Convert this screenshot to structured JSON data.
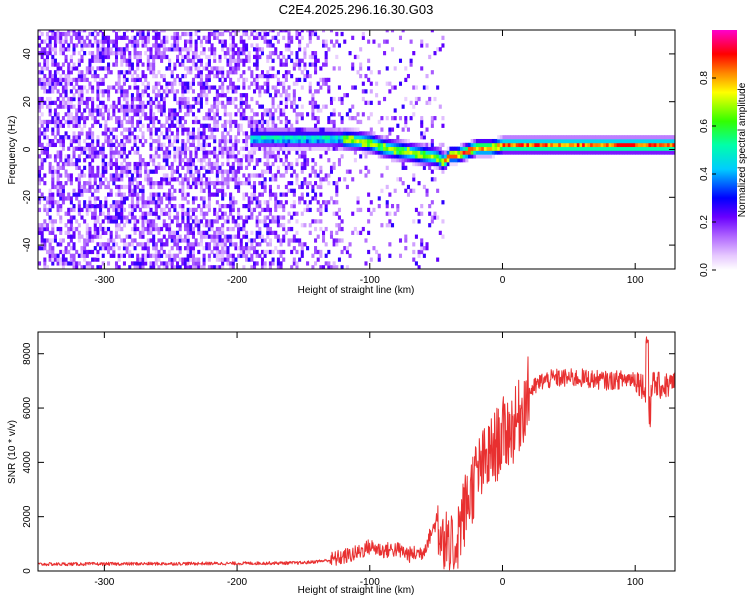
{
  "title": "C2E4.2025.296.16.30.G03",
  "chart_data": [
    {
      "type": "heatmap",
      "name": "spectrogram",
      "xlabel": "Height of straight line (km)",
      "ylabel": "Frequency (Hz)",
      "xlim": [
        -350,
        130
      ],
      "ylim": [
        -50,
        50
      ],
      "x_ticks": [
        -300,
        -200,
        -100,
        0,
        100
      ],
      "y_ticks": [
        -40,
        -20,
        0,
        20,
        40
      ],
      "colorbar": {
        "label": "Normalized spectral amplitude",
        "range": [
          0,
          1
        ],
        "ticks": [
          0.0,
          0.2,
          0.4,
          0.6,
          0.8
        ],
        "colors": [
          "#ffffff",
          "#cc88ff",
          "#7700ff",
          "#0000ff",
          "#00ffff",
          "#00ff00",
          "#ffff00",
          "#ff0000",
          "#ff00ff"
        ]
      },
      "ridge": [
        {
          "x": -185,
          "f": 4
        },
        {
          "x": -170,
          "f": 4
        },
        {
          "x": -150,
          "f": 4
        },
        {
          "x": -130,
          "f": 4
        },
        {
          "x": -110,
          "f": 3
        },
        {
          "x": -100,
          "f": 2
        },
        {
          "x": -90,
          "f": 0
        },
        {
          "x": -80,
          "f": -1
        },
        {
          "x": -70,
          "f": -2
        },
        {
          "x": -60,
          "f": -3
        },
        {
          "x": -50,
          "f": -4
        },
        {
          "x": -45,
          "f": -6
        },
        {
          "x": -40,
          "f": -3
        },
        {
          "x": -35,
          "f": -3
        },
        {
          "x": -30,
          "f": -2
        },
        {
          "x": -25,
          "f": -1
        },
        {
          "x": -20,
          "f": 0
        },
        {
          "x": -10,
          "f": 0
        },
        {
          "x": 0,
          "f": 1
        },
        {
          "x": 20,
          "f": 1
        },
        {
          "x": 50,
          "f": 1
        },
        {
          "x": 80,
          "f": 1
        },
        {
          "x": 100,
          "f": 1
        },
        {
          "x": 110,
          "f": 1
        },
        {
          "x": 130,
          "f": 1
        }
      ]
    },
    {
      "type": "line",
      "name": "snr",
      "xlabel": "Height of straight line (km)",
      "ylabel": "SNR (10 * v/v)",
      "xlim": [
        -350,
        130
      ],
      "ylim": [
        0,
        8800
      ],
      "x_ticks": [
        -300,
        -200,
        -100,
        0,
        100
      ],
      "y_ticks": [
        0,
        2000,
        4000,
        6000,
        8000
      ],
      "color": "#e83030",
      "x": [
        -350,
        -300,
        -250,
        -200,
        -150,
        -130,
        -110,
        -100,
        -90,
        -80,
        -70,
        -60,
        -50,
        -45,
        -40,
        -30,
        -20,
        -10,
        0,
        10,
        20,
        30,
        40,
        60,
        80,
        100,
        108,
        112,
        120,
        130
      ],
      "y": [
        250,
        260,
        270,
        280,
        300,
        400,
        650,
        900,
        750,
        800,
        600,
        700,
        1800,
        1500,
        400,
        2000,
        3500,
        4200,
        5000,
        5400,
        6600,
        7000,
        7100,
        7100,
        7000,
        7100,
        6700,
        6900,
        6800,
        6900
      ]
    }
  ]
}
